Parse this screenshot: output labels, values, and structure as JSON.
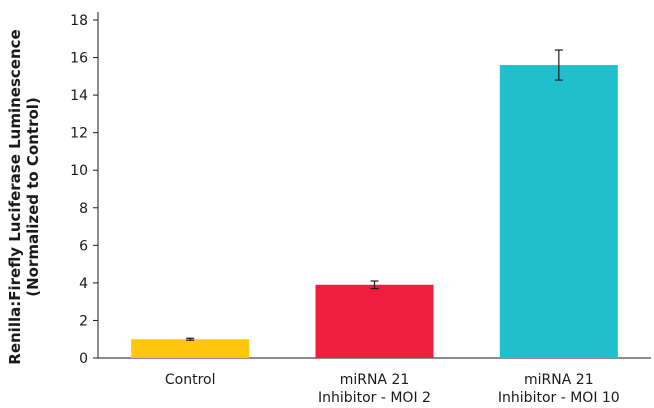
{
  "chart_data": {
    "type": "bar",
    "categories": [
      [
        "Control"
      ],
      [
        "miRNA 21",
        "Inhibitor - MOI 2"
      ],
      [
        "miRNA 21",
        "Inhibitor - MOI 10"
      ]
    ],
    "values": [
      1.0,
      3.9,
      15.6
    ],
    "errors": [
      0.05,
      0.2,
      0.8
    ],
    "colors": [
      "#FFC60B",
      "#F01E3C",
      "#21BFCD"
    ],
    "ylabel": [
      "Renilla:Firefly Luciferase Luminescence",
      "(Normalized to Control)"
    ],
    "xlabel": "",
    "ylim": [
      0,
      18
    ],
    "yticks": [
      0,
      2,
      4,
      6,
      8,
      10,
      12,
      14,
      16,
      18
    ],
    "grid": false,
    "legend": "none"
  }
}
